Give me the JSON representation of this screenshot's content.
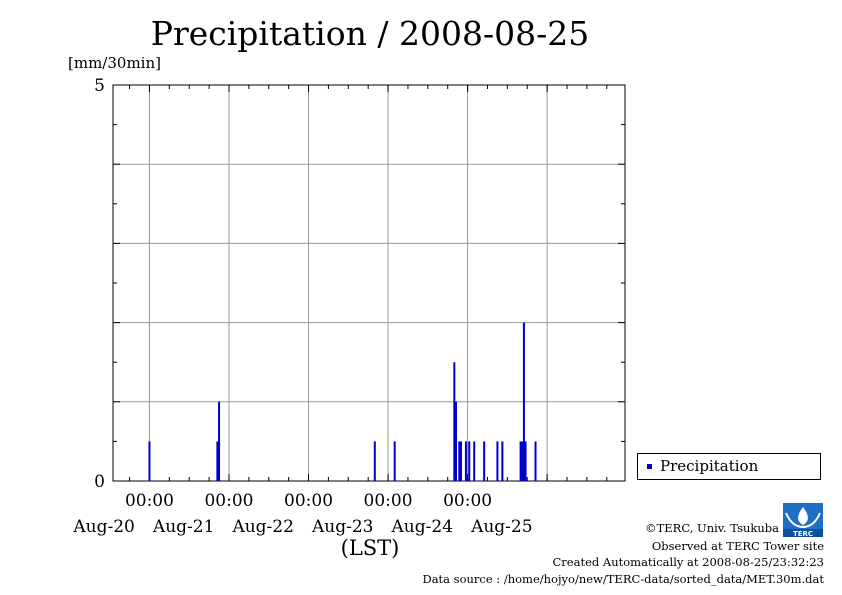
{
  "chart_data": {
    "type": "bar",
    "title": "Precipitation / 2008-08-25",
    "ylabel": "[mm/30min]",
    "xlabel": "(LST)",
    "ylim": [
      0,
      5
    ],
    "yticks": [
      "0",
      "5"
    ],
    "xlim": [
      "2008-08-19 13:00",
      "2008-08-25 23:30"
    ],
    "time_ticks": [
      "00:00",
      "00:00",
      "00:00",
      "00:00",
      "00:00"
    ],
    "date_labels": [
      "Aug-20",
      "Aug-21",
      "Aug-22",
      "Aug-23",
      "Aug-24",
      "Aug-25"
    ],
    "grid": true,
    "legend": "right",
    "series": [
      {
        "name": "Precipitation",
        "color": "#0000cc",
        "points": [
          {
            "x": "2008-08-20 00:00",
            "y": 0.5
          },
          {
            "x": "2008-08-20 20:30",
            "y": 0.5
          },
          {
            "x": "2008-08-20 21:00",
            "y": 1.0
          },
          {
            "x": "2008-08-22 20:00",
            "y": 0.5
          },
          {
            "x": "2008-08-23 02:00",
            "y": 0.5
          },
          {
            "x": "2008-08-23 20:00",
            "y": 1.5
          },
          {
            "x": "2008-08-23 20:30",
            "y": 1.0
          },
          {
            "x": "2008-08-23 21:30",
            "y": 0.5
          },
          {
            "x": "2008-08-23 22:00",
            "y": 0.5
          },
          {
            "x": "2008-08-23 23:30",
            "y": 0.5
          },
          {
            "x": "2008-08-24 00:30",
            "y": 0.5
          },
          {
            "x": "2008-08-24 02:00",
            "y": 0.5
          },
          {
            "x": "2008-08-24 05:00",
            "y": 0.5
          },
          {
            "x": "2008-08-24 09:00",
            "y": 0.5
          },
          {
            "x": "2008-08-24 10:30",
            "y": 0.5
          },
          {
            "x": "2008-08-24 16:00",
            "y": 0.5
          },
          {
            "x": "2008-08-24 16:30",
            "y": 0.5
          },
          {
            "x": "2008-08-24 17:00",
            "y": 2.0
          },
          {
            "x": "2008-08-24 17:30",
            "y": 0.5
          },
          {
            "x": "2008-08-24 20:30",
            "y": 0.5
          }
        ]
      }
    ]
  },
  "footer": {
    "copyright": "©TERC, Univ. Tsukuba",
    "observed": "Observed at TERC Tower site",
    "created": "Created Automatically at 2008-08-25/23:32:23",
    "source": "Data source : /home/hojyo/new/TERC-data/sorted_data/MET.30m.dat",
    "logo_text": "TERC"
  }
}
